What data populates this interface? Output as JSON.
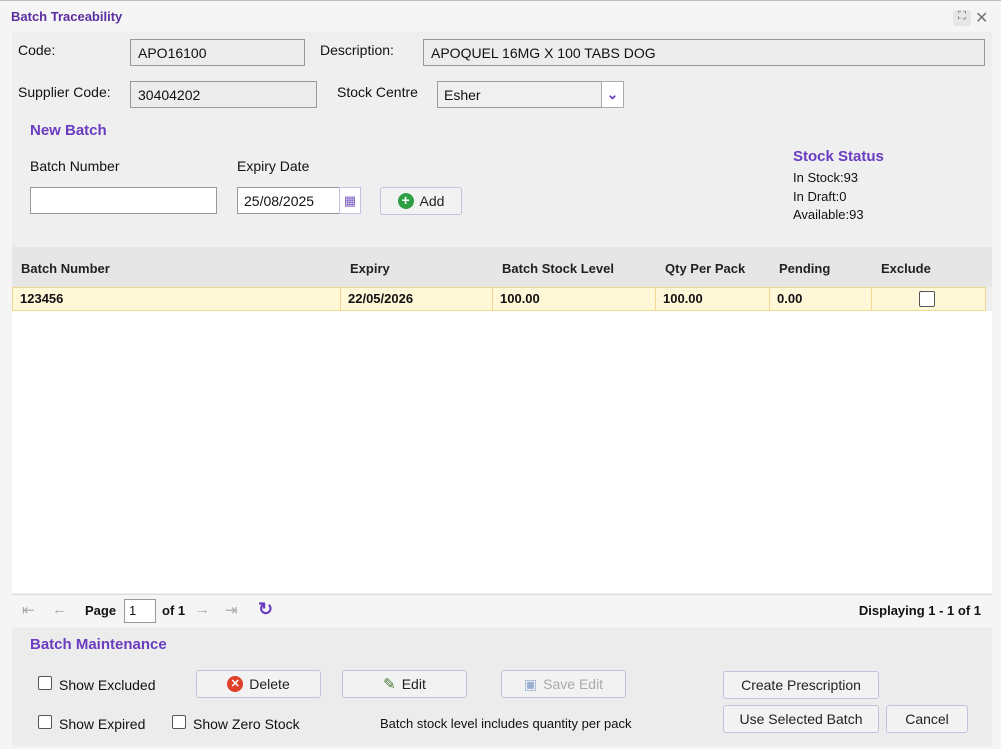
{
  "window": {
    "title": "Batch Traceability"
  },
  "form": {
    "code_label": "Code:",
    "code_value": "APO16100",
    "description_label": "Description:",
    "description_value": "APOQUEL 16MG X 100 TABS DOG",
    "supplier_code_label": "Supplier Code:",
    "supplier_code_value": "30404202",
    "stock_centre_label": "Stock Centre",
    "stock_centre_value": "Esher"
  },
  "new_batch": {
    "heading": "New Batch",
    "batch_number_label": "Batch Number",
    "batch_number_value": "",
    "expiry_label": "Expiry Date",
    "expiry_value": "25/08/2025",
    "add_label": "Add"
  },
  "stock_status": {
    "heading": "Stock Status",
    "in_stock": "In Stock:93",
    "in_draft": "In Draft:0",
    "available": "Available:93"
  },
  "grid": {
    "columns": [
      "Batch Number",
      "Expiry",
      "Batch Stock Level",
      "Qty Per Pack",
      "Pending",
      "Exclude"
    ],
    "rows": [
      {
        "batch_number": "123456",
        "expiry": "22/05/2026",
        "batch_stock_level": "100.00",
        "qty_per_pack": "100.00",
        "pending": "0.00",
        "exclude": false
      }
    ]
  },
  "pager": {
    "page_label": "Page",
    "page_value": "1",
    "of_label": "of 1",
    "displaying": "Displaying 1 - 1 of 1"
  },
  "maintenance": {
    "heading": "Batch Maintenance",
    "show_excluded": "Show Excluded",
    "show_expired": "Show Expired",
    "show_zero_stock": "Show Zero Stock",
    "delete": "Delete",
    "edit": "Edit",
    "save_edit": "Save Edit",
    "note": "Batch stock level includes quantity per pack",
    "create_prescription": "Create Prescription",
    "use_selected_batch": "Use Selected Batch",
    "cancel": "Cancel"
  },
  "colors": {
    "accent": "#6a3cc0",
    "row_highlight": "#fff8d8"
  }
}
